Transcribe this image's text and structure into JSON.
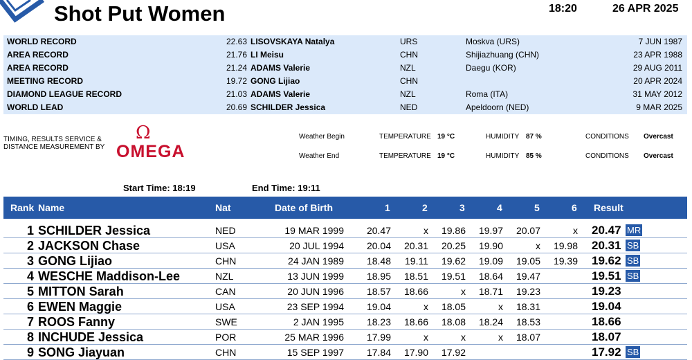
{
  "header": {
    "title": "Shot Put Women",
    "time": "18:20",
    "date": "26 APR 2025"
  },
  "records": [
    {
      "label": "WORLD RECORD",
      "mark": "22.63",
      "name": "LISOVSKAYA Natalya",
      "nat": "URS",
      "venue": "Moskva (URS)",
      "date": "7 JUN 1987"
    },
    {
      "label": "AREA RECORD",
      "mark": "21.76",
      "name": "LI Meisu",
      "nat": "CHN",
      "venue": "Shijiazhuang (CHN)",
      "date": "23 APR 1988"
    },
    {
      "label": "AREA RECORD",
      "mark": "21.24",
      "name": "ADAMS Valerie",
      "nat": "NZL",
      "venue": "Daegu (KOR)",
      "date": "29 AUG 2011"
    },
    {
      "label": "MEETING RECORD",
      "mark": "19.72",
      "name": "GONG Lijiao",
      "nat": "CHN",
      "venue": "",
      "date": "20 APR 2024"
    },
    {
      "label": "DIAMOND LEAGUE RECORD",
      "mark": "21.03",
      "name": "ADAMS Valerie",
      "nat": "NZL",
      "venue": "Roma (ITA)",
      "date": "31 MAY 2012"
    },
    {
      "label": "WORLD LEAD",
      "mark": "20.69",
      "name": "SCHILDER Jessica",
      "nat": "NED",
      "venue": "Apeldoorn (NED)",
      "date": "9 MAR 2025"
    }
  ],
  "timing": {
    "line1": "TIMING, RESULTS SERVICE &",
    "line2": "DISTANCE MEASUREMENT BY",
    "brand_symbol": "Ω",
    "brand": "OMEGA"
  },
  "weather": {
    "begin": {
      "label": "Weather Begin",
      "temp_label": "TEMPERATURE",
      "temp": "19 °C",
      "hum_label": "HUMIDITY",
      "hum": "87 %",
      "cond_label": "CONDITIONS",
      "cond": "Overcast"
    },
    "end": {
      "label": "Weather End",
      "temp_label": "TEMPERATURE",
      "temp": "19 °C",
      "hum_label": "HUMIDITY",
      "hum": "85 %",
      "cond_label": "CONDITIONS",
      "cond": "Overcast"
    }
  },
  "session": {
    "start_label": "Start Time:",
    "start": "18:19",
    "end_label": "End Time:",
    "end": "19:11"
  },
  "table": {
    "headers": {
      "rank": "Rank",
      "name": "Name",
      "nat": "Nat",
      "dob": "Date of Birth",
      "a1": "1",
      "a2": "2",
      "a3": "3",
      "a4": "4",
      "a5": "5",
      "a6": "6",
      "result": "Result"
    },
    "rows": [
      {
        "rank": "1",
        "name": "SCHILDER Jessica",
        "nat": "NED",
        "dob": "19 MAR 1999",
        "attempts": [
          "20.47",
          "x",
          "19.86",
          "19.97",
          "20.07",
          "x"
        ],
        "result": "20.47",
        "badge": "MR"
      },
      {
        "rank": "2",
        "name": "JACKSON Chase",
        "nat": "USA",
        "dob": "20 JUL 1994",
        "attempts": [
          "20.04",
          "20.31",
          "20.25",
          "19.90",
          "x",
          "19.98"
        ],
        "result": "20.31",
        "badge": "SB"
      },
      {
        "rank": "3",
        "name": "GONG Lijiao",
        "nat": "CHN",
        "dob": "24 JAN 1989",
        "attempts": [
          "18.48",
          "19.11",
          "19.62",
          "19.09",
          "19.05",
          "19.39"
        ],
        "result": "19.62",
        "badge": "SB"
      },
      {
        "rank": "4",
        "name": "WESCHE Maddison-Lee",
        "nat": "NZL",
        "dob": "13 JUN 1999",
        "attempts": [
          "18.95",
          "18.51",
          "19.51",
          "18.64",
          "19.47",
          ""
        ],
        "result": "19.51",
        "badge": "SB"
      },
      {
        "rank": "5",
        "name": "MITTON Sarah",
        "nat": "CAN",
        "dob": "20 JUN 1996",
        "attempts": [
          "18.57",
          "18.66",
          "x",
          "18.71",
          "19.23",
          ""
        ],
        "result": "19.23",
        "badge": ""
      },
      {
        "rank": "6",
        "name": "EWEN Maggie",
        "nat": "USA",
        "dob": "23 SEP 1994",
        "attempts": [
          "19.04",
          "x",
          "18.05",
          "x",
          "18.31",
          ""
        ],
        "result": "19.04",
        "badge": ""
      },
      {
        "rank": "7",
        "name": "ROOS Fanny",
        "nat": "SWE",
        "dob": "2 JAN 1995",
        "attempts": [
          "18.23",
          "18.66",
          "18.08",
          "18.24",
          "18.53",
          ""
        ],
        "result": "18.66",
        "badge": ""
      },
      {
        "rank": "8",
        "name": "INCHUDE Jessica",
        "nat": "POR",
        "dob": "25 MAR 1996",
        "attempts": [
          "17.99",
          "x",
          "x",
          "x",
          "18.07",
          ""
        ],
        "result": "18.07",
        "badge": ""
      },
      {
        "rank": "9",
        "name": "SONG Jiayuan",
        "nat": "CHN",
        "dob": "15 SEP 1997",
        "attempts": [
          "17.84",
          "17.90",
          "17.92",
          "",
          "",
          ""
        ],
        "result": "17.92",
        "badge": "SB"
      }
    ]
  },
  "colors": {
    "header_blue": "#275aa8",
    "record_bg": "#dbe9fa",
    "omega_red": "#c8102e"
  }
}
